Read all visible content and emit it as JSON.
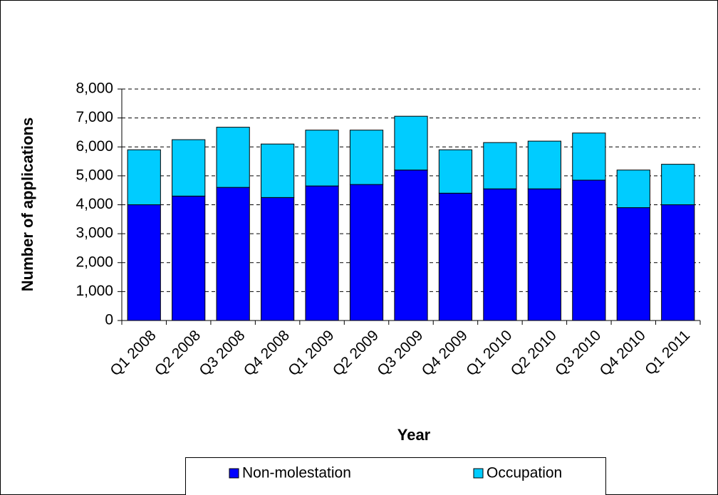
{
  "chart_data": {
    "type": "stacked-bar",
    "x_label": "Year",
    "y_label": "Number of applications",
    "categories": [
      "Q1 2008",
      "Q2 2008",
      "Q3 2008",
      "Q4 2008",
      "Q1 2009",
      "Q2 2009",
      "Q3 2009",
      "Q4 2009",
      "Q1 2010",
      "Q2 2010",
      "Q3 2010",
      "Q4 2010",
      "Q1 2011"
    ],
    "series": [
      {
        "name": "Non-molestation",
        "color": "#0000ff",
        "values": [
          4000,
          4300,
          4600,
          4250,
          4650,
          4700,
          5200,
          4400,
          4550,
          4550,
          4850,
          3900,
          4000
        ]
      },
      {
        "name": "Occupation",
        "color": "#00ccff",
        "values": [
          1900,
          1950,
          2080,
          1850,
          1930,
          1880,
          1860,
          1500,
          1600,
          1650,
          1630,
          1300,
          1400
        ]
      }
    ],
    "ylim": [
      0,
      8000
    ],
    "yticks": [
      0,
      {
        "value": 1000,
        "label": "1,000"
      },
      {
        "value": 2000,
        "label": "2,000"
      },
      {
        "value": 3000,
        "label": "3,000"
      },
      {
        "value": 4000,
        "label": "4,000"
      },
      {
        "value": 5000,
        "label": "5,000"
      },
      {
        "value": 6000,
        "label": "6,000"
      },
      {
        "value": 7000,
        "label": "7,000"
      },
      {
        "value": 8000,
        "label": "8,000"
      }
    ],
    "grid": true,
    "legend": "bottom"
  }
}
